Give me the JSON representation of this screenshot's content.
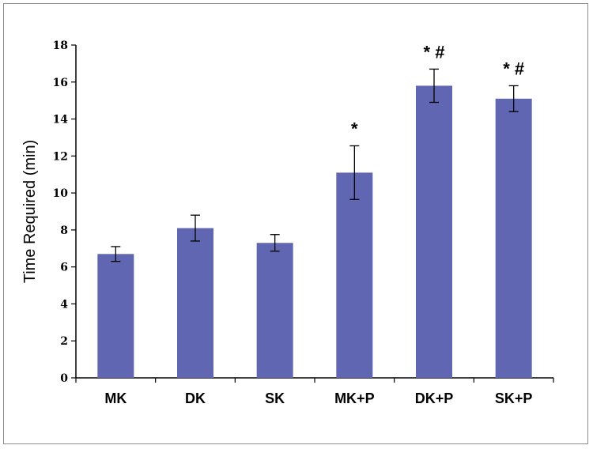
{
  "chart_data": {
    "type": "bar",
    "categories": [
      "MK",
      "DK",
      "SK",
      "MK+P",
      "DK+P",
      "SK+P"
    ],
    "values": [
      6.7,
      8.1,
      7.3,
      11.1,
      15.8,
      15.1
    ],
    "errors": [
      0.4,
      0.7,
      0.45,
      1.45,
      0.9,
      0.7
    ],
    "annotations": [
      "",
      "",
      "",
      "*",
      "* #",
      "* #"
    ],
    "title": "",
    "xlabel": "",
    "ylabel": "Time Required (min)",
    "ylim": [
      0,
      18
    ],
    "yticks": [
      0,
      2,
      4,
      6,
      8,
      10,
      12,
      14,
      16,
      18
    ],
    "grid": false,
    "legend": "none",
    "bar_color": "#6166b3"
  }
}
